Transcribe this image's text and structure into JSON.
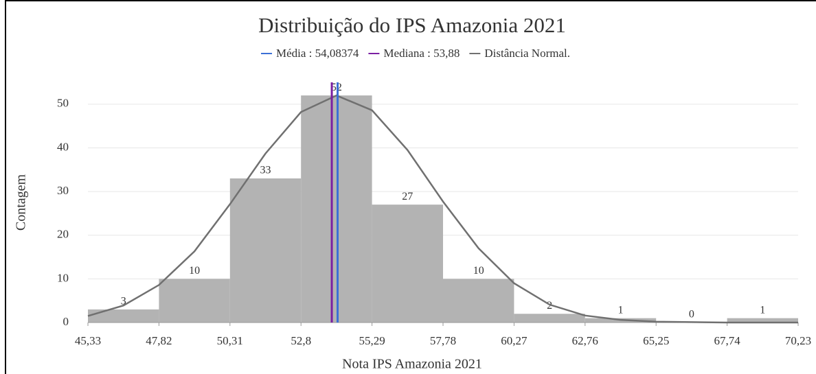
{
  "chart_data": {
    "type": "histogram",
    "title": "Distribuição do IPS Amazonia 2021",
    "xlabel": "Nota IPS Amazonia 2021",
    "ylabel": "Contagem",
    "bins": [
      45.33,
      47.82,
      50.31,
      52.8,
      55.29,
      57.78,
      60.27,
      62.76,
      65.25,
      67.74,
      70.23
    ],
    "counts": [
      3,
      10,
      33,
      52,
      27,
      10,
      2,
      1,
      0,
      1
    ],
    "color": "#b3b3b3",
    "xlim": [
      45.33,
      70.23
    ],
    "xticks": [
      {
        "value": 45.33,
        "label": "45,33"
      },
      {
        "value": 47.82,
        "label": "47,82"
      },
      {
        "value": 50.31,
        "label": "50,31"
      },
      {
        "value": 52.8,
        "label": "52,8"
      },
      {
        "value": 55.29,
        "label": "55,29"
      },
      {
        "value": 57.78,
        "label": "57,78"
      },
      {
        "value": 60.27,
        "label": "60,27"
      },
      {
        "value": 62.76,
        "label": "62,76"
      },
      {
        "value": 65.25,
        "label": "65,25"
      },
      {
        "value": 67.74,
        "label": "67,74"
      },
      {
        "value": 70.23,
        "label": "70,23"
      }
    ],
    "ylim": [
      0,
      55
    ],
    "yticks": [
      0,
      10,
      20,
      30,
      40,
      50
    ],
    "grid": true,
    "lines": [
      {
        "name": "Média : 54,08374",
        "color": "#3b6fd6",
        "x": 54.08374
      },
      {
        "name": "Mediana : 53,88",
        "color": "#7b1fa2",
        "x": 53.88
      }
    ],
    "curve": {
      "name": "Distância Normal.",
      "color": "#707070",
      "x": [
        45.33,
        46.575,
        47.82,
        49.065,
        50.31,
        51.555,
        52.8,
        54.045,
        55.29,
        56.535,
        57.78,
        59.025,
        60.27,
        61.515,
        62.76,
        64.005,
        65.25,
        67.74,
        70.23
      ],
      "values": [
        1.5,
        3.9,
        8.6,
        16.3,
        27.1,
        38.7,
        48.2,
        52,
        48.6,
        39.5,
        27.7,
        17.0,
        9.0,
        4.1,
        1.6,
        0.6,
        0.2,
        0,
        0
      ]
    }
  }
}
